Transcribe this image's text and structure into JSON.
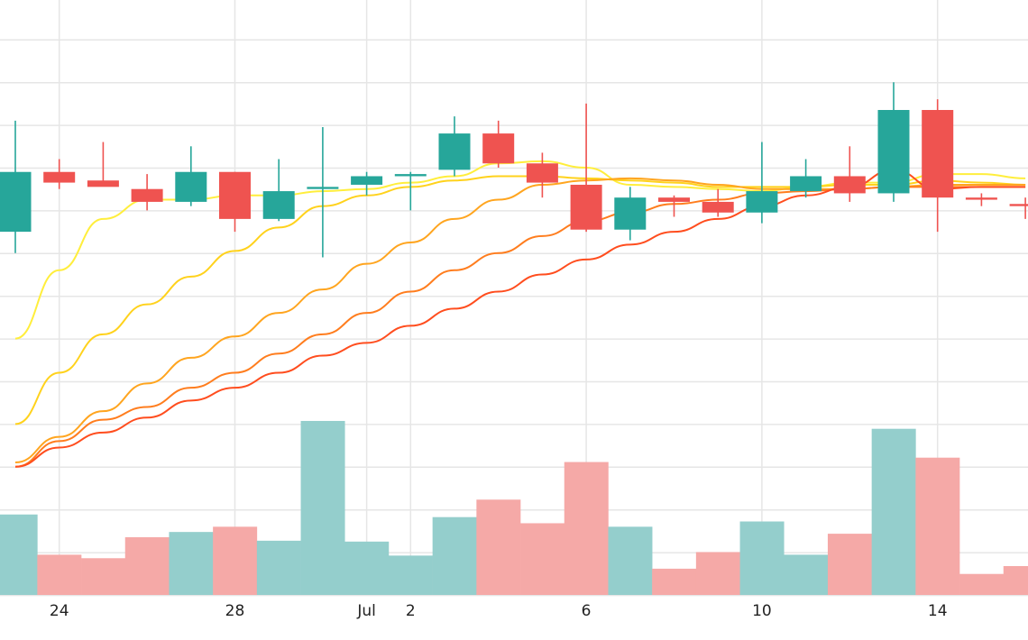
{
  "chart_data": {
    "type": "candlestick",
    "x_tick_labels": [
      {
        "label": "24",
        "date": "2023-06-24"
      },
      {
        "label": "28",
        "date": "2023-06-28"
      },
      {
        "label": "Jul",
        "date": "2023-07-01"
      },
      {
        "label": "2",
        "date": "2023-07-02"
      },
      {
        "label": "6",
        "date": "2023-07-06"
      },
      {
        "label": "10",
        "date": "2023-07-10"
      },
      {
        "label": "14",
        "date": "2023-07-14"
      }
    ],
    "grid": true,
    "legend": "none",
    "ylim": [
      0,
      14
    ],
    "volume_ylim": [
      0,
      10
    ],
    "colors": {
      "up": "#26a69a",
      "down": "#ef5350",
      "up_volume": "#94cecc",
      "down_volume": "#f5a9a7",
      "grid": "#e6e6e6"
    },
    "candles": [
      {
        "date": "2023-06-23",
        "open": 8.5,
        "high": 11.1,
        "low": 8.0,
        "close": 9.9,
        "volume": 4.6
      },
      {
        "date": "2023-06-24",
        "open": 9.9,
        "high": 10.2,
        "low": 9.5,
        "close": 9.65,
        "volume": 2.3
      },
      {
        "date": "2023-06-25",
        "open": 9.7,
        "high": 10.6,
        "low": 9.6,
        "close": 9.55,
        "volume": 2.1
      },
      {
        "date": "2023-06-26",
        "open": 9.5,
        "high": 9.85,
        "low": 9.0,
        "close": 9.2,
        "volume": 3.3
      },
      {
        "date": "2023-06-27",
        "open": 9.2,
        "high": 10.5,
        "low": 9.1,
        "close": 9.9,
        "volume": 3.6
      },
      {
        "date": "2023-06-28",
        "open": 9.9,
        "high": 9.9,
        "low": 8.5,
        "close": 8.8,
        "volume": 3.9
      },
      {
        "date": "2023-06-29",
        "open": 8.8,
        "high": 10.2,
        "low": 8.75,
        "close": 9.45,
        "volume": 3.1
      },
      {
        "date": "2023-06-30",
        "open": 9.5,
        "high": 10.95,
        "low": 7.9,
        "close": 9.55,
        "volume": 9.95
      },
      {
        "date": "2023-07-01",
        "open": 9.6,
        "high": 9.9,
        "low": 9.35,
        "close": 9.8,
        "volume": 3.05
      },
      {
        "date": "2023-07-02",
        "open": 9.8,
        "high": 9.9,
        "low": 9.0,
        "close": 9.85,
        "volume": 2.25
      },
      {
        "date": "2023-07-03",
        "open": 9.95,
        "high": 11.2,
        "low": 9.8,
        "close": 10.8,
        "volume": 4.45
      },
      {
        "date": "2023-07-04",
        "open": 10.8,
        "high": 11.1,
        "low": 10.0,
        "close": 10.1,
        "volume": 5.45
      },
      {
        "date": "2023-07-05",
        "open": 10.1,
        "high": 10.35,
        "low": 9.3,
        "close": 9.65,
        "volume": 4.1
      },
      {
        "date": "2023-07-06",
        "open": 9.6,
        "high": 11.5,
        "low": 8.5,
        "close": 8.55,
        "volume": 7.6
      },
      {
        "date": "2023-07-07",
        "open": 8.55,
        "high": 9.55,
        "low": 8.3,
        "close": 9.3,
        "volume": 3.9
      },
      {
        "date": "2023-07-08",
        "open": 9.3,
        "high": 9.35,
        "low": 8.85,
        "close": 9.2,
        "volume": 1.5
      },
      {
        "date": "2023-07-09",
        "open": 9.2,
        "high": 9.5,
        "low": 8.85,
        "close": 8.95,
        "volume": 2.45
      },
      {
        "date": "2023-07-10",
        "open": 8.95,
        "high": 10.6,
        "low": 8.7,
        "close": 9.45,
        "volume": 4.2
      },
      {
        "date": "2023-07-11",
        "open": 9.45,
        "high": 10.2,
        "low": 9.3,
        "close": 9.8,
        "volume": 2.3
      },
      {
        "date": "2023-07-12",
        "open": 9.8,
        "high": 10.5,
        "low": 9.2,
        "close": 9.4,
        "volume": 3.5
      },
      {
        "date": "2023-07-13",
        "open": 9.4,
        "high": 12.0,
        "low": 9.2,
        "close": 11.35,
        "volume": 9.5
      },
      {
        "date": "2023-07-14",
        "open": 11.35,
        "high": 11.6,
        "low": 8.5,
        "close": 9.3,
        "volume": 7.85
      },
      {
        "date": "2023-07-15",
        "open": 9.3,
        "high": 9.4,
        "low": 9.1,
        "close": 9.25,
        "volume": 1.2
      },
      {
        "date": "2023-07-16",
        "open": 9.15,
        "high": 9.3,
        "low": 8.8,
        "close": 9.1,
        "volume": 1.65
      }
    ],
    "moving_averages": [
      {
        "color": "#ffee3c",
        "values": [
          6.0,
          7.6,
          8.8,
          9.25,
          9.25,
          9.35,
          9.35,
          9.45,
          9.5,
          9.65,
          9.8,
          10.1,
          10.15,
          10.0,
          9.6,
          9.55,
          9.5,
          9.45,
          9.55,
          9.65,
          9.65,
          9.85,
          9.85,
          9.75
        ]
      },
      {
        "color": "#ffd21c",
        "values": [
          4.0,
          5.2,
          6.1,
          6.8,
          7.45,
          8.05,
          8.6,
          9.1,
          9.35,
          9.55,
          9.7,
          9.8,
          9.8,
          9.75,
          9.7,
          9.65,
          9.55,
          9.55,
          9.55,
          9.6,
          9.6,
          9.7,
          9.65,
          9.6
        ]
      },
      {
        "color": "#ffa51f",
        "values": [
          3.1,
          3.7,
          4.3,
          4.95,
          5.55,
          6.05,
          6.6,
          7.15,
          7.75,
          8.25,
          8.8,
          9.25,
          9.6,
          9.7,
          9.75,
          9.7,
          9.6,
          9.5,
          9.5,
          9.5,
          9.55,
          9.6,
          9.6,
          9.6
        ]
      },
      {
        "color": "#ff7d1e",
        "values": [
          3.0,
          3.6,
          4.1,
          4.4,
          4.85,
          5.2,
          5.65,
          6.1,
          6.6,
          7.1,
          7.6,
          8.0,
          8.4,
          8.75,
          8.95,
          9.15,
          9.25,
          9.4,
          9.45,
          9.5,
          9.55,
          9.55,
          9.55,
          9.55
        ]
      },
      {
        "color": "#ff4d1e",
        "values": [
          3.0,
          3.45,
          3.8,
          4.15,
          4.55,
          4.85,
          5.2,
          5.6,
          5.9,
          6.3,
          6.7,
          7.1,
          7.5,
          7.85,
          8.2,
          8.5,
          8.8,
          9.1,
          9.35,
          9.55,
          9.95,
          9.5,
          9.55,
          9.55
        ]
      }
    ]
  }
}
